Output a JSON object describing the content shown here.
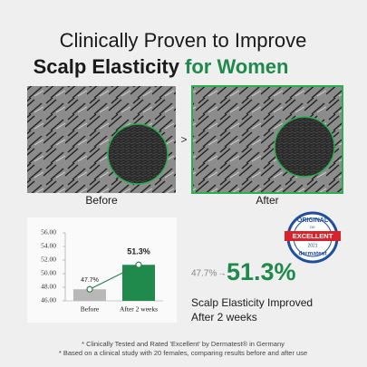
{
  "header": {
    "title_line1": "Clinically Proven to Improve",
    "title_line2_main": "Scalp Elasticity",
    "title_line2_accent": "for Women"
  },
  "images": {
    "before_label": "Before",
    "after_label": "After",
    "separator": ">"
  },
  "chart": {
    "type": "bar",
    "categories": [
      "Before",
      "After 2 weeks"
    ],
    "values": [
      47.7,
      51.3
    ],
    "value_labels": [
      "47.7%",
      "51.3%"
    ],
    "colors": [
      "#b8b8b8",
      "#1f8a4c"
    ],
    "line_color": "#2e7d4f",
    "ylim": [
      46,
      56
    ],
    "yticks": [
      {
        "value": 46,
        "label": "46.00"
      },
      {
        "value": 48,
        "label": "48.00"
      },
      {
        "value": 50,
        "label": "50.00"
      },
      {
        "value": 52,
        "label": "52.00"
      },
      {
        "value": 54,
        "label": "54.00"
      },
      {
        "value": 56,
        "label": "56.00"
      }
    ]
  },
  "badge": {
    "top": "ORIGINAL",
    "small": "DE",
    "main": "EXCELLENT",
    "year": "2021",
    "brand": "dermatest"
  },
  "result": {
    "caption_line1": "Scalp Elasticity Improved",
    "caption_line2": "After 2 weeks"
  },
  "footnotes": [
    "* Clinically Tested and Rated 'Excellent' by Dermatest® in Germany",
    "* Based on a clinical study with 20 females, comparing results before and after use"
  ]
}
